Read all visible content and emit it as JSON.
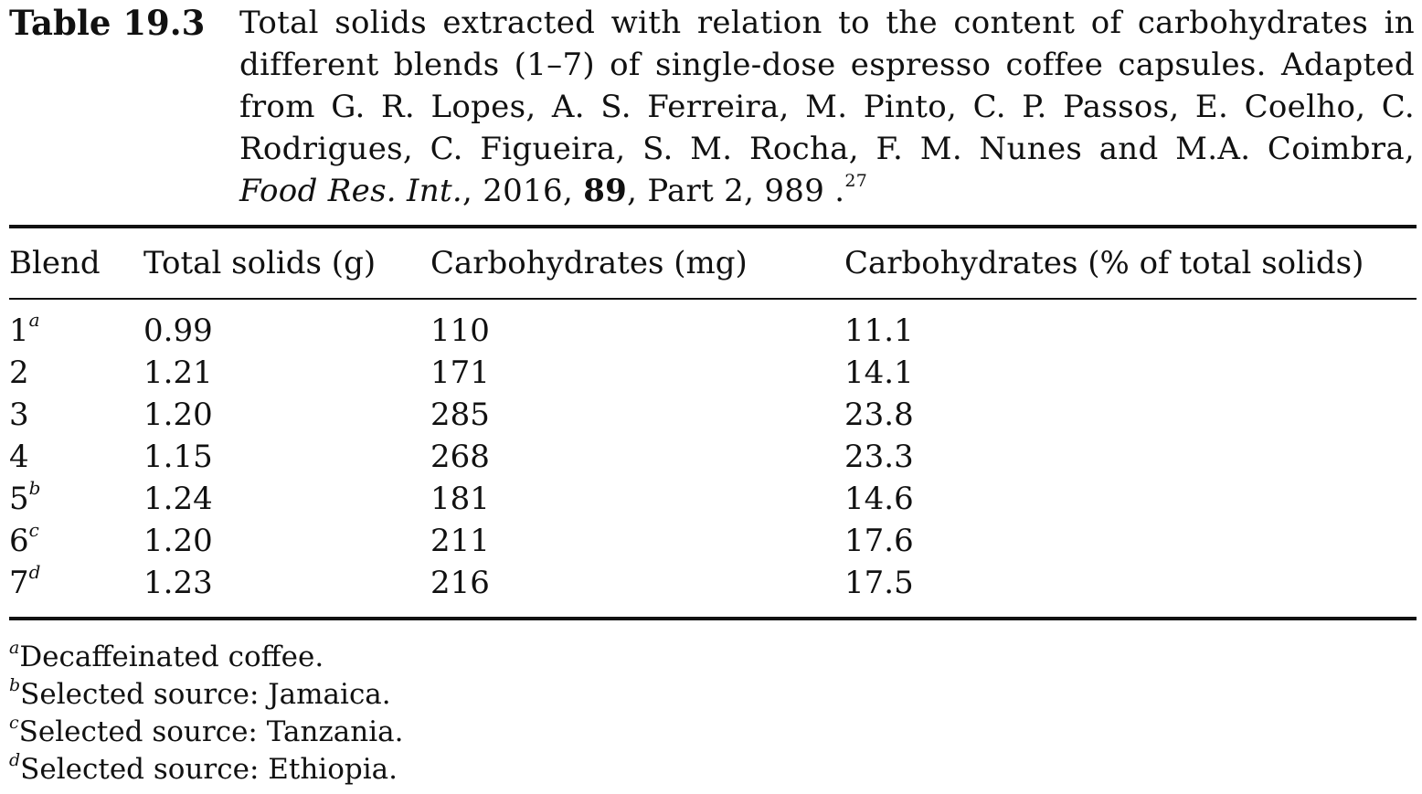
{
  "caption": {
    "label": "Table 19.3",
    "text_before": "Total solids extracted with relation to the content of carbohydrates in different blends (1–7) of single-dose espresso coffee capsules. Adapted from G. R. Lopes, A. S. Ferreira, M. Pinto, C. P. Passos, E. Coelho, C. Rodrigues, C. Figueira, S. M. Rocha, F. M. Nunes and M.A. Coimbra,",
    "journal": "Food Res. Int.",
    "year_text": ", 2016, ",
    "volume": "89",
    "pages_text": ", Part 2, 989 .",
    "ref": "27"
  },
  "table": {
    "headers": [
      "Blend",
      "Total solids (g)",
      "Carbohydrates (mg)",
      "Carbohydrates (% of total solids)"
    ],
    "rows": [
      {
        "blend": "1",
        "mark": "a",
        "total_solids": "0.99",
        "carbs_mg": "110",
        "carbs_pct": "11.1"
      },
      {
        "blend": "2",
        "mark": "",
        "total_solids": "1.21",
        "carbs_mg": "171",
        "carbs_pct": "14.1"
      },
      {
        "blend": "3",
        "mark": "",
        "total_solids": "1.20",
        "carbs_mg": "285",
        "carbs_pct": "23.8"
      },
      {
        "blend": "4",
        "mark": "",
        "total_solids": "1.15",
        "carbs_mg": "268",
        "carbs_pct": "23.3"
      },
      {
        "blend": "5",
        "mark": "b",
        "total_solids": "1.24",
        "carbs_mg": "181",
        "carbs_pct": "14.6"
      },
      {
        "blend": "6",
        "mark": "c",
        "total_solids": "1.20",
        "carbs_mg": "211",
        "carbs_pct": "17.6"
      },
      {
        "blend": "7",
        "mark": "d",
        "total_solids": "1.23",
        "carbs_mg": "216",
        "carbs_pct": "17.5"
      }
    ]
  },
  "footnotes": [
    {
      "mark": "a",
      "text": "Decaffeinated coffee."
    },
    {
      "mark": "b",
      "text": "Selected source: Jamaica."
    },
    {
      "mark": "c",
      "text": "Selected source: Tanzania."
    },
    {
      "mark": "d",
      "text": "Selected source: Ethiopia."
    }
  ]
}
